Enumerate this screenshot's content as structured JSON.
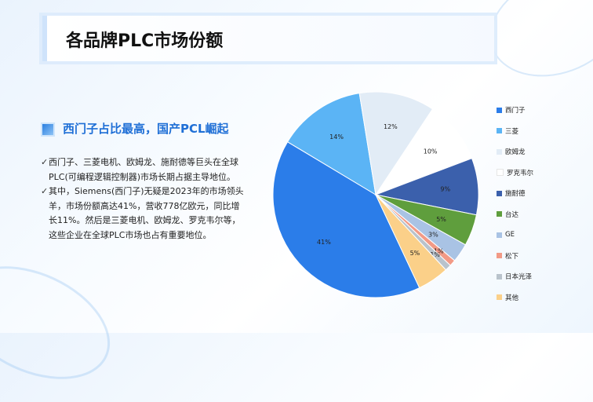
{
  "slide": {
    "title": "各品牌PLC市场份额",
    "subtitle": "西门子占比最高，国产PCL崛起",
    "bullets": [
      "西门子、三菱电机、欧姆龙、施耐德等巨头在全球PLC(可编程逻辑控制器)市场长期占据主导地位。",
      "其中，Siemens(西门子)无疑是2023年的市场领头羊，市场份额高达41%，营收778亿欧元，同比增长11%。然后是三菱电机、欧姆龙、罗克韦尔等，这些企业在全球PLC市场也占有重要地位。"
    ],
    "bullet_icon": "check-mark"
  },
  "chart_data": {
    "type": "pie",
    "title": "",
    "legend_position": "right",
    "slices": [
      {
        "name": "西门子",
        "value": 41,
        "label": "41%",
        "color": "#2b7de9"
      },
      {
        "name": "三菱",
        "value": 14,
        "label": "14%",
        "color": "#5bb4f5"
      },
      {
        "name": "欧姆龙",
        "value": 12,
        "label": "12%",
        "color": "#e2ecf6"
      },
      {
        "name": "罗克韦尔",
        "value": 10,
        "label": "10%",
        "color": "#ffffff"
      },
      {
        "name": "施耐德",
        "value": 9,
        "label": "9%",
        "color": "#3b60ac"
      },
      {
        "name": "台达",
        "value": 5,
        "label": "5%",
        "color": "#5f9e3d"
      },
      {
        "name": "GE",
        "value": 3,
        "label": "3%",
        "color": "#a9c3e4"
      },
      {
        "name": "松下",
        "value": 1,
        "label": "1%",
        "color": "#f29a86"
      },
      {
        "name": "日本光泽",
        "value": 1,
        "label": "1%",
        "color": "#b9c3cc"
      },
      {
        "name": "其他",
        "value": 5,
        "label": "5%",
        "color": "#fbd089"
      }
    ]
  }
}
